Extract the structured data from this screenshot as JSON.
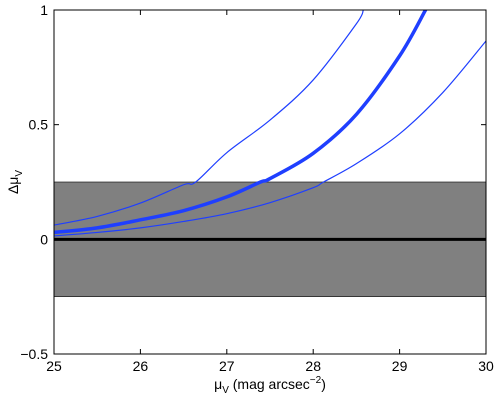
{
  "chart_data": {
    "type": "line",
    "title": "",
    "xlabel": "μ",
    "xlabel_sub": "V",
    "xlabel_units": " (mag arcsec",
    "xlabel_units_sup": "−2",
    "xlabel_units_close": ")",
    "ylabel": "Δμ",
    "ylabel_sub": "V",
    "xlim": [
      25,
      30
    ],
    "ylim": [
      -0.5,
      1
    ],
    "xticks": [
      25,
      26,
      27,
      28,
      29,
      30
    ],
    "xtick_labels": [
      "25",
      "26",
      "27",
      "28",
      "29",
      "30"
    ],
    "yticks": [
      -0.5,
      0,
      0.5,
      1
    ],
    "ytick_labels": [
      "−0.5",
      "0",
      "0.5",
      "1"
    ],
    "grid": false,
    "band": {
      "y_low": -0.25,
      "y_high": 0.25,
      "color": "#808080"
    },
    "zero_line": {
      "y": 0,
      "color": "#000000"
    },
    "series": [
      {
        "style": "thin",
        "color": "#1f3fff",
        "x": [
          25.0,
          25.5,
          26.0,
          26.5,
          26.64,
          27.0,
          27.5,
          28.0,
          28.5,
          28.58
        ],
        "y": [
          0.062,
          0.1,
          0.158,
          0.238,
          0.25,
          0.378,
          0.52,
          0.695,
          0.94,
          1.0
        ]
      },
      {
        "style": "thick",
        "color": "#1f3fff",
        "x": [
          25.0,
          25.5,
          26.0,
          26.5,
          27.0,
          27.39,
          27.5,
          28.0,
          28.5,
          29.0,
          29.3
        ],
        "y": [
          0.03,
          0.05,
          0.085,
          0.125,
          0.185,
          0.25,
          0.265,
          0.375,
          0.545,
          0.8,
          1.0
        ]
      },
      {
        "style": "thin",
        "color": "#1f3fff",
        "x": [
          25.0,
          25.5,
          26.0,
          26.5,
          27.0,
          27.5,
          28.0,
          28.12,
          28.5,
          29.0,
          29.5,
          30.0
        ],
        "y": [
          0.015,
          0.03,
          0.05,
          0.078,
          0.112,
          0.16,
          0.225,
          0.25,
          0.33,
          0.46,
          0.64,
          0.865
        ]
      }
    ]
  }
}
